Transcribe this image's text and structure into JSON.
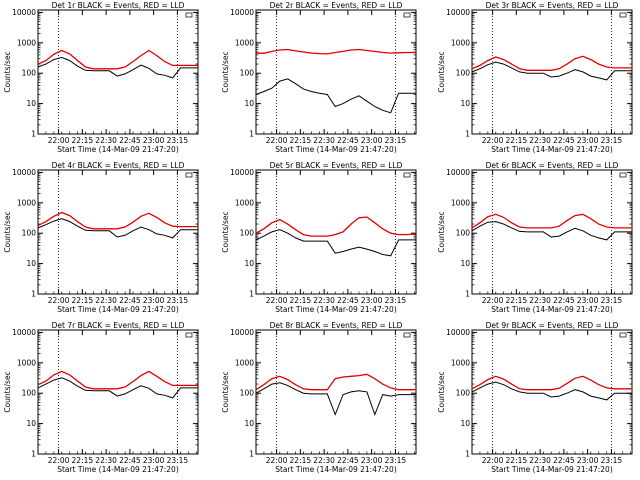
{
  "shared": {
    "ylabel": "Counts/sec",
    "xlabel": "Start Time (14-Mar-09 21:47:20)",
    "x_ticks": [
      "22:00",
      "22:15",
      "22:30",
      "22:45",
      "23:00",
      "23:15"
    ],
    "y_ticks": [
      "1",
      "10",
      "100",
      "1000",
      "10000"
    ],
    "y_log_range": [
      1,
      12000
    ],
    "x_range_minutes_after_start": [
      0,
      101
    ],
    "vlines_minutes_after_start": [
      13,
      88
    ],
    "legend_text": "",
    "colors": {
      "events": "#000000",
      "lld": "#e00000"
    }
  },
  "chart_data": [
    {
      "type": "line",
      "title": "Det 1r BLACK = Events, RED = LLD",
      "x": [
        0,
        5,
        10,
        15,
        20,
        25,
        30,
        35,
        40,
        45,
        50,
        55,
        60,
        65,
        70,
        75,
        80,
        85,
        90,
        95,
        101
      ],
      "series": [
        {
          "name": "BLACK = Events",
          "values": [
            160,
            200,
            280,
            330,
            260,
            170,
            125,
            120,
            120,
            120,
            80,
            95,
            130,
            185,
            145,
            95,
            85,
            70,
            150,
            150,
            150
          ]
        },
        {
          "name": "RED = LLD",
          "values": [
            200,
            260,
            420,
            560,
            430,
            260,
            160,
            140,
            140,
            140,
            140,
            160,
            240,
            380,
            560,
            380,
            240,
            180,
            180,
            180,
            180
          ]
        }
      ]
    },
    {
      "type": "line",
      "title": "Det 2r BLACK = Events, RED = LLD",
      "x": [
        0,
        5,
        10,
        15,
        20,
        25,
        30,
        35,
        40,
        45,
        50,
        55,
        60,
        65,
        70,
        75,
        80,
        85,
        90,
        95,
        101
      ],
      "series": [
        {
          "name": "BLACK = Events",
          "values": [
            20,
            25,
            32,
            55,
            65,
            45,
            30,
            25,
            22,
            20,
            8,
            10,
            14,
            18,
            12,
            8,
            6,
            5,
            22,
            22,
            22
          ]
        },
        {
          "name": "RED = LLD",
          "values": [
            460,
            450,
            520,
            580,
            600,
            540,
            500,
            460,
            440,
            430,
            480,
            520,
            580,
            600,
            560,
            520,
            480,
            460,
            470,
            480,
            480
          ]
        }
      ]
    },
    {
      "type": "line",
      "title": "Det 3r BLACK = Events, RED = LLD",
      "x": [
        0,
        5,
        10,
        15,
        20,
        25,
        30,
        35,
        40,
        45,
        50,
        55,
        60,
        65,
        70,
        75,
        80,
        85,
        90,
        95,
        101
      ],
      "series": [
        {
          "name": "BLACK = Events",
          "values": [
            110,
            140,
            190,
            230,
            200,
            150,
            110,
            100,
            100,
            100,
            75,
            80,
            100,
            130,
            110,
            80,
            70,
            60,
            120,
            120,
            120
          ]
        },
        {
          "name": "RED = LLD",
          "values": [
            140,
            180,
            260,
            340,
            280,
            200,
            140,
            125,
            125,
            125,
            125,
            140,
            200,
            300,
            360,
            280,
            200,
            160,
            150,
            150,
            150
          ]
        }
      ]
    },
    {
      "type": "line",
      "title": "Det 4r BLACK = Events, RED = LLD",
      "x": [
        0,
        5,
        10,
        15,
        20,
        25,
        30,
        35,
        40,
        45,
        50,
        55,
        60,
        65,
        70,
        75,
        80,
        85,
        90,
        95,
        101
      ],
      "series": [
        {
          "name": "BLACK = Events",
          "values": [
            150,
            190,
            250,
            300,
            240,
            170,
            125,
            120,
            120,
            120,
            75,
            85,
            120,
            160,
            130,
            95,
            85,
            70,
            130,
            130,
            130
          ]
        },
        {
          "name": "RED = LLD",
          "values": [
            180,
            240,
            360,
            480,
            380,
            240,
            160,
            140,
            140,
            140,
            140,
            160,
            230,
            360,
            450,
            330,
            220,
            170,
            165,
            165,
            165
          ]
        }
      ]
    },
    {
      "type": "line",
      "title": "Det 5r BLACK = Events, RED = LLD",
      "x": [
        0,
        5,
        10,
        15,
        20,
        25,
        30,
        35,
        40,
        45,
        50,
        55,
        60,
        65,
        70,
        75,
        80,
        85,
        90,
        95,
        101
      ],
      "series": [
        {
          "name": "BLACK = Events",
          "values": [
            60,
            80,
            110,
            130,
            100,
            70,
            55,
            55,
            55,
            55,
            22,
            25,
            30,
            35,
            30,
            25,
            20,
            18,
            60,
            60,
            60
          ]
        },
        {
          "name": "RED = LLD",
          "values": [
            100,
            140,
            220,
            280,
            200,
            130,
            90,
            80,
            80,
            80,
            90,
            110,
            200,
            320,
            340,
            220,
            140,
            100,
            90,
            90,
            95
          ]
        }
      ]
    },
    {
      "type": "line",
      "title": "Det 6r BLACK = Events, RED = LLD",
      "x": [
        0,
        5,
        10,
        15,
        20,
        25,
        30,
        35,
        40,
        45,
        50,
        55,
        60,
        65,
        70,
        75,
        80,
        85,
        90,
        95,
        101
      ],
      "series": [
        {
          "name": "BLACK = Events",
          "values": [
            120,
            170,
            230,
            240,
            200,
            150,
            115,
            110,
            110,
            110,
            75,
            80,
            110,
            145,
            120,
            85,
            70,
            60,
            110,
            110,
            110
          ]
        },
        {
          "name": "RED = LLD",
          "values": [
            150,
            220,
            350,
            420,
            330,
            220,
            160,
            150,
            150,
            150,
            150,
            170,
            260,
            380,
            420,
            300,
            200,
            160,
            150,
            150,
            150
          ]
        }
      ]
    },
    {
      "type": "line",
      "title": "Det 7r BLACK = Events, RED = LLD",
      "x": [
        0,
        5,
        10,
        15,
        20,
        25,
        30,
        35,
        40,
        45,
        50,
        55,
        60,
        65,
        70,
        75,
        80,
        85,
        90,
        95,
        101
      ],
      "series": [
        {
          "name": "BLACK = Events",
          "values": [
            150,
            200,
            270,
            320,
            250,
            170,
            125,
            120,
            120,
            120,
            80,
            95,
            130,
            175,
            145,
            95,
            85,
            70,
            150,
            150,
            150
          ]
        },
        {
          "name": "RED = LLD",
          "values": [
            190,
            250,
            400,
            520,
            400,
            250,
            160,
            140,
            140,
            140,
            140,
            160,
            240,
            380,
            520,
            360,
            240,
            180,
            180,
            180,
            180
          ]
        }
      ]
    },
    {
      "type": "line",
      "title": "Det 8r BLACK = Events, RED = LLD",
      "x": [
        0,
        5,
        10,
        15,
        20,
        25,
        30,
        35,
        40,
        45,
        50,
        55,
        60,
        65,
        70,
        75,
        80,
        85,
        90,
        95,
        101
      ],
      "series": [
        {
          "name": "BLACK = Events",
          "values": [
            100,
            140,
            200,
            220,
            180,
            130,
            100,
            95,
            95,
            95,
            20,
            90,
            110,
            120,
            110,
            20,
            90,
            80,
            90,
            90,
            90
          ]
        },
        {
          "name": "RED = LLD",
          "values": [
            130,
            190,
            300,
            360,
            280,
            190,
            140,
            130,
            130,
            130,
            300,
            340,
            360,
            380,
            420,
            300,
            200,
            150,
            130,
            130,
            130
          ]
        }
      ]
    },
    {
      "type": "line",
      "title": "Det 9r BLACK = Events, RED = LLD",
      "x": [
        0,
        5,
        10,
        15,
        20,
        25,
        30,
        35,
        40,
        45,
        50,
        55,
        60,
        65,
        70,
        75,
        80,
        85,
        90,
        95,
        101
      ],
      "series": [
        {
          "name": "BLACK = Events",
          "values": [
            110,
            150,
            200,
            230,
            190,
            140,
            110,
            100,
            100,
            100,
            75,
            80,
            100,
            130,
            110,
            80,
            70,
            60,
            100,
            100,
            100
          ]
        },
        {
          "name": "RED = LLD",
          "values": [
            140,
            190,
            280,
            360,
            290,
            200,
            140,
            130,
            130,
            130,
            130,
            145,
            210,
            310,
            360,
            270,
            190,
            150,
            140,
            140,
            140
          ]
        }
      ]
    }
  ]
}
